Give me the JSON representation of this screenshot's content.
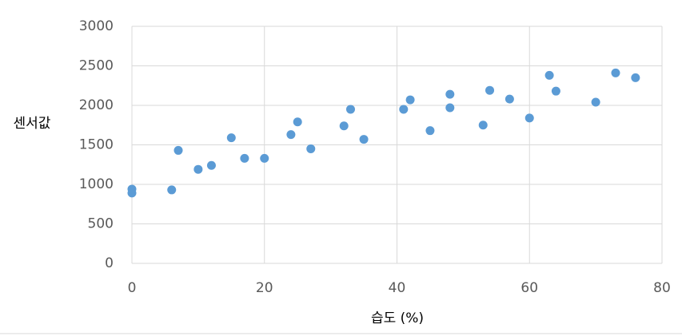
{
  "chart_data": {
    "type": "scatter",
    "x_label": "습도 (%)",
    "y_label": "센서값",
    "x": [
      0,
      0,
      6,
      7,
      10,
      12,
      15,
      17,
      20,
      24,
      25,
      27,
      32,
      33,
      35,
      41,
      42,
      45,
      48,
      48,
      53,
      54,
      57,
      60,
      63,
      64,
      70,
      73,
      76
    ],
    "values": [
      940,
      890,
      930,
      1430,
      1190,
      1240,
      1590,
      1330,
      1330,
      1630,
      1790,
      1450,
      1740,
      1950,
      1570,
      1950,
      2070,
      1680,
      2140,
      1970,
      1750,
      2190,
      2080,
      1840,
      2380,
      2180,
      2040,
      2410,
      2350
    ],
    "color": "#5b9bd5",
    "xlim": [
      0,
      80
    ],
    "xticks": [
      0,
      20,
      40,
      60,
      80
    ],
    "ylim": [
      0,
      3000
    ],
    "yticks": [
      0,
      500,
      1000,
      1500,
      2000,
      2500,
      3000
    ],
    "grid": true
  }
}
